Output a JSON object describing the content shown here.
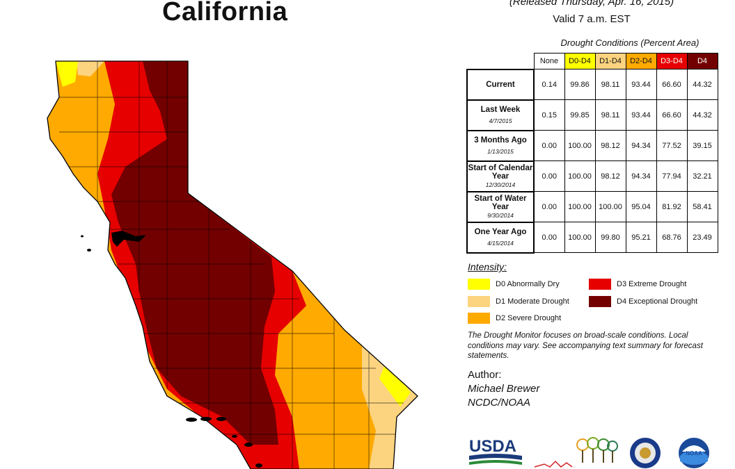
{
  "header": {
    "state": "California",
    "released": "(Released Thursday, Apr. 16, 2015)",
    "valid": "Valid 7 a.m. EST"
  },
  "table": {
    "caption": "Drought Conditions (Percent Area)",
    "columns": [
      {
        "label": "None",
        "bg": "#ffffff",
        "fg": "#111111"
      },
      {
        "label": "D0-D4",
        "bg": "#ffff00",
        "fg": "#111111"
      },
      {
        "label": "D1-D4",
        "bg": "#fcd37f",
        "fg": "#111111"
      },
      {
        "label": "D2-D4",
        "bg": "#ffaa00",
        "fg": "#111111"
      },
      {
        "label": "D3-D4",
        "bg": "#e60000",
        "fg": "#ffffff"
      },
      {
        "label": "D4",
        "bg": "#730000",
        "fg": "#ffffff"
      }
    ],
    "rows": [
      {
        "label": "Current",
        "date": "",
        "values": [
          "0.14",
          "99.86",
          "98.11",
          "93.44",
          "66.60",
          "44.32"
        ]
      },
      {
        "label": "Last Week",
        "date": "4/7/2015",
        "values": [
          "0.15",
          "99.85",
          "98.11",
          "93.44",
          "66.60",
          "44.32"
        ]
      },
      {
        "label": "3 Months Ago",
        "date": "1/13/2015",
        "values": [
          "0.00",
          "100.00",
          "98.12",
          "94.34",
          "77.52",
          "39.15"
        ]
      },
      {
        "label": "Start of Calendar Year",
        "date": "12/30/2014",
        "values": [
          "0.00",
          "100.00",
          "98.12",
          "94.34",
          "77.94",
          "32.21"
        ]
      },
      {
        "label": "Start of Water Year",
        "date": "9/30/2014",
        "values": [
          "0.00",
          "100.00",
          "100.00",
          "95.04",
          "81.92",
          "58.41"
        ]
      },
      {
        "label": "One Year Ago",
        "date": "4/15/2014",
        "values": [
          "0.00",
          "100.00",
          "99.80",
          "95.21",
          "68.76",
          "23.49"
        ]
      }
    ]
  },
  "legend": {
    "title": "Intensity:",
    "items": [
      {
        "label": "D0 Abnormally Dry",
        "color": "#ffff00"
      },
      {
        "label": "D1 Moderate Drought",
        "color": "#fcd37f"
      },
      {
        "label": "D2 Severe Drought",
        "color": "#ffaa00"
      },
      {
        "label": "D3 Extreme Drought",
        "color": "#e60000"
      },
      {
        "label": "D4 Exceptional Drought",
        "color": "#730000"
      }
    ]
  },
  "note": "The Drought Monitor focuses on broad-scale conditions. Local conditions may vary. See accompanying text summary for forecast statements.",
  "author": {
    "heading": "Author:",
    "name": "Michael Brewer",
    "org": "NCDC/NOAA"
  },
  "logos": {
    "usda": "USDA",
    "noaa": "NOAA"
  }
}
